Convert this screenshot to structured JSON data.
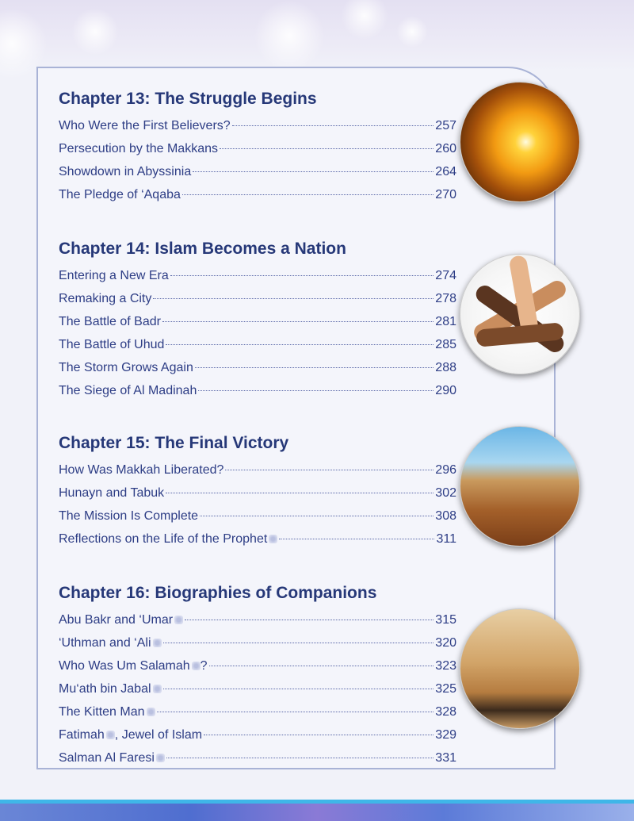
{
  "chapters": [
    {
      "heading": "Chapter 13:  The Struggle Begins",
      "entries": [
        {
          "title": "Who Were the First Believers?",
          "page": "257"
        },
        {
          "title": "Persecution by the Makkans",
          "page": "260"
        },
        {
          "title": "Showdown in Abyssinia",
          "page": "264"
        },
        {
          "title": "The Pledge of ‘Aqaba",
          "page": "270"
        }
      ]
    },
    {
      "heading": "Chapter 14:  Islam Becomes a Nation",
      "entries": [
        {
          "title": "Entering a New Era",
          "page": "274"
        },
        {
          "title": "Remaking a City",
          "page": "278"
        },
        {
          "title": "The Battle of Badr",
          "page": "281"
        },
        {
          "title": "The Battle of Uhud",
          "page": "285"
        },
        {
          "title": "The Storm Grows Again",
          "page": "288"
        },
        {
          "title": "The Siege of Al Madinah",
          "page": "290"
        }
      ]
    },
    {
      "heading": "Chapter 15:  The Final Victory",
      "entries": [
        {
          "title": "How Was Makkah Liberated?",
          "page": "296"
        },
        {
          "title": "Hunayn and Tabuk",
          "page": "302"
        },
        {
          "title": "The Mission Is Complete",
          "page": "308"
        },
        {
          "title": "Reflections on the Life of the Prophet",
          "suffix": "",
          "page": "311"
        }
      ]
    },
    {
      "heading": "Chapter 16:  Biographies of Companions",
      "entries": [
        {
          "title": "Abu Bakr and ‘Umar",
          "suffix": "",
          "page": "315"
        },
        {
          "title": "‘Uthman and ‘Ali",
          "suffix": "",
          "page": "320"
        },
        {
          "title": "Who Was Um Salamah",
          "suffix": "?",
          "page": "323"
        },
        {
          "title": "Mu‘ath bin Jabal",
          "suffix": "",
          "page": "325"
        },
        {
          "title": "The Kitten Man",
          "suffix": "",
          "page": "328"
        },
        {
          "title": "Fatimah",
          "suffix": ", Jewel of Islam",
          "page": "329"
        },
        {
          "title": "Salman Al Faresi",
          "suffix": "",
          "page": "331"
        }
      ]
    }
  ],
  "colors": {
    "heading": "#263878",
    "text": "#2d3d85",
    "border": "#a9b3d6"
  },
  "images": [
    "sunset-icon",
    "joined-hands-icon",
    "desert-oasis-icon",
    "camel-caravan-icon"
  ]
}
